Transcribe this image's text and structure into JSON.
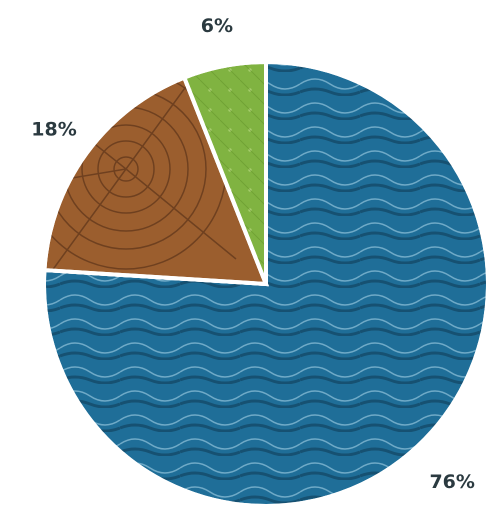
{
  "chart_data": {
    "type": "pie",
    "values": [
      76,
      18,
      6
    ],
    "value_labels": [
      "76%",
      "18%",
      "6%"
    ],
    "colors": [
      "#1f6e98",
      "#9b5e2e",
      "#80b341"
    ]
  }
}
